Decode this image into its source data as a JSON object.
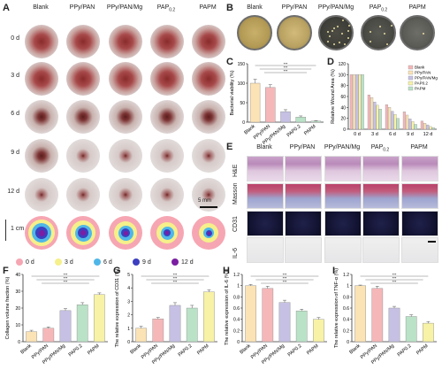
{
  "panels": {
    "A": "A",
    "B": "B",
    "C": "C",
    "D": "D",
    "E": "E",
    "F": "F",
    "G": "G",
    "H": "H",
    "I": "I"
  },
  "panel_A": {
    "columns": [
      "Blank",
      "PPy/PAN",
      "PPy/PAN/Mg",
      "PAP",
      "PAPM"
    ],
    "pap_sub": "0.2",
    "rows": [
      "0 d",
      "3 d",
      "6 d",
      "9 d",
      "12 d"
    ],
    "scale": "5 mm",
    "sketch_scale": "1 cm",
    "legend": [
      "0 d",
      "3 d",
      "6 d",
      "9 d",
      "12 d"
    ],
    "legend_colors": [
      "#f6a6b2",
      "#f5f08a",
      "#4fb7e8",
      "#3c3fbf",
      "#7b1ea2"
    ]
  },
  "panel_B": {
    "columns": [
      "Blank",
      "PPy/PAN",
      "PPy/PAN/Mg",
      "PAP",
      "PAPM"
    ],
    "pap_sub": "0.2"
  },
  "panel_E": {
    "columns": [
      "Blank",
      "PPy/PAN",
      "PPy/PAN/Mg",
      "PAP",
      "PAPM"
    ],
    "pap_sub": "0.2",
    "rows": [
      "H&E",
      "Masson",
      "CD31",
      "IL-6"
    ]
  },
  "chart_data": [
    {
      "id": "C",
      "type": "bar",
      "ylabel": "Bacterial viability (%)",
      "categories": [
        "Blank",
        "PPy/PAN",
        "PPy/PAN/Mg",
        "PAP0.2",
        "PAPM"
      ],
      "values": [
        100,
        89,
        27,
        13,
        3
      ],
      "errors": [
        10,
        7,
        5,
        3,
        1
      ],
      "ylim": [
        0,
        150
      ],
      "yticks": [
        0,
        50,
        100,
        150
      ],
      "colors": [
        "#fbe3b5",
        "#f6b7b9",
        "#c6c1e4",
        "#b9e2c6",
        "#c9f0d7"
      ],
      "sig": [
        "***",
        "***",
        "***",
        "**",
        "**",
        "ns"
      ]
    },
    {
      "id": "D",
      "type": "bar",
      "ylabel": "Relative Wound Area (%)",
      "categories": [
        "0 d",
        "3 d",
        "6 d",
        "9 d",
        "12 d"
      ],
      "series": [
        {
          "name": "Blank",
          "values": [
            100,
            63,
            45,
            32,
            15
          ]
        },
        {
          "name": "PPy/PAN",
          "values": [
            100,
            58,
            40,
            26,
            11
          ]
        },
        {
          "name": "PPy/PAN/Mg",
          "values": [
            100,
            50,
            33,
            19,
            8
          ]
        },
        {
          "name": "PAP0.2",
          "values": [
            100,
            44,
            27,
            14,
            5
          ]
        },
        {
          "name": "PAPM",
          "values": [
            100,
            37,
            20,
            9,
            3
          ]
        }
      ],
      "colors": [
        "#f6b7b9",
        "#fbe3b5",
        "#c6c1e4",
        "#f7f2a6",
        "#b9e2c6"
      ],
      "ylim": [
        0,
        120
      ],
      "yticks": [
        0,
        20,
        40,
        60,
        80,
        100,
        120
      ]
    },
    {
      "id": "F",
      "type": "bar",
      "ylabel": "Collagen volume fraction (%)",
      "categories": [
        "Blank",
        "PPy/PAN",
        "PPy/PAN/Mg",
        "PAP0.2",
        "PAPM"
      ],
      "values": [
        6,
        8,
        18.5,
        22,
        28
      ],
      "errors": [
        0.8,
        0.8,
        1.2,
        1.2,
        1.0
      ],
      "ylim": [
        0,
        40
      ],
      "yticks": [
        0,
        10,
        20,
        30,
        40
      ],
      "colors": [
        "#fbe3b5",
        "#f6b7b9",
        "#c6c1e4",
        "#b9e2c6",
        "#f7f2a6"
      ]
    },
    {
      "id": "G",
      "type": "bar",
      "ylabel": "The relative expression of CD31 (%)",
      "categories": [
        "Blank",
        "PPy/PAN",
        "PPy/PAN/Mg",
        "PAP0.2",
        "PAPM"
      ],
      "values": [
        1.0,
        1.7,
        2.7,
        2.5,
        3.7
      ],
      "errors": [
        0.15,
        0.1,
        0.2,
        0.2,
        0.15
      ],
      "ylim": [
        0,
        5
      ],
      "yticks": [
        0,
        1,
        2,
        3,
        4,
        5
      ],
      "colors": [
        "#fbe3b5",
        "#f6b7b9",
        "#c6c1e4",
        "#b9e2c6",
        "#f7f2a6"
      ]
    },
    {
      "id": "H",
      "type": "bar",
      "ylabel": "The relative expression of IL-6 (%)",
      "categories": [
        "Blank",
        "PPy/PAN",
        "PPy/PAN/Mg",
        "PAP0.2",
        "PAPM"
      ],
      "values": [
        1.0,
        0.95,
        0.7,
        0.55,
        0.4
      ],
      "errors": [
        0.02,
        0.04,
        0.04,
        0.03,
        0.03
      ],
      "ylim": [
        0,
        1.2
      ],
      "yticks": [
        0,
        0.2,
        0.4,
        0.6,
        0.8,
        1.0,
        1.2
      ],
      "colors": [
        "#fbe3b5",
        "#f6b7b9",
        "#c6c1e4",
        "#b9e2c6",
        "#f7f2a6"
      ]
    },
    {
      "id": "I",
      "type": "bar",
      "ylabel": "The relative expression of TNF-α (%)",
      "categories": [
        "Blank",
        "PPy/PAN",
        "PPy/PAN/Mg",
        "PAP0.2",
        "PAPM"
      ],
      "values": [
        1.0,
        0.95,
        0.6,
        0.45,
        0.33
      ],
      "errors": [
        0.01,
        0.04,
        0.03,
        0.03,
        0.03
      ],
      "ylim": [
        0,
        1.2
      ],
      "yticks": [
        0,
        0.2,
        0.4,
        0.6,
        0.8,
        1.0,
        1.2
      ],
      "colors": [
        "#fbe3b5",
        "#f6b7b9",
        "#c6c1e4",
        "#b9e2c6",
        "#f7f2a6"
      ]
    }
  ]
}
